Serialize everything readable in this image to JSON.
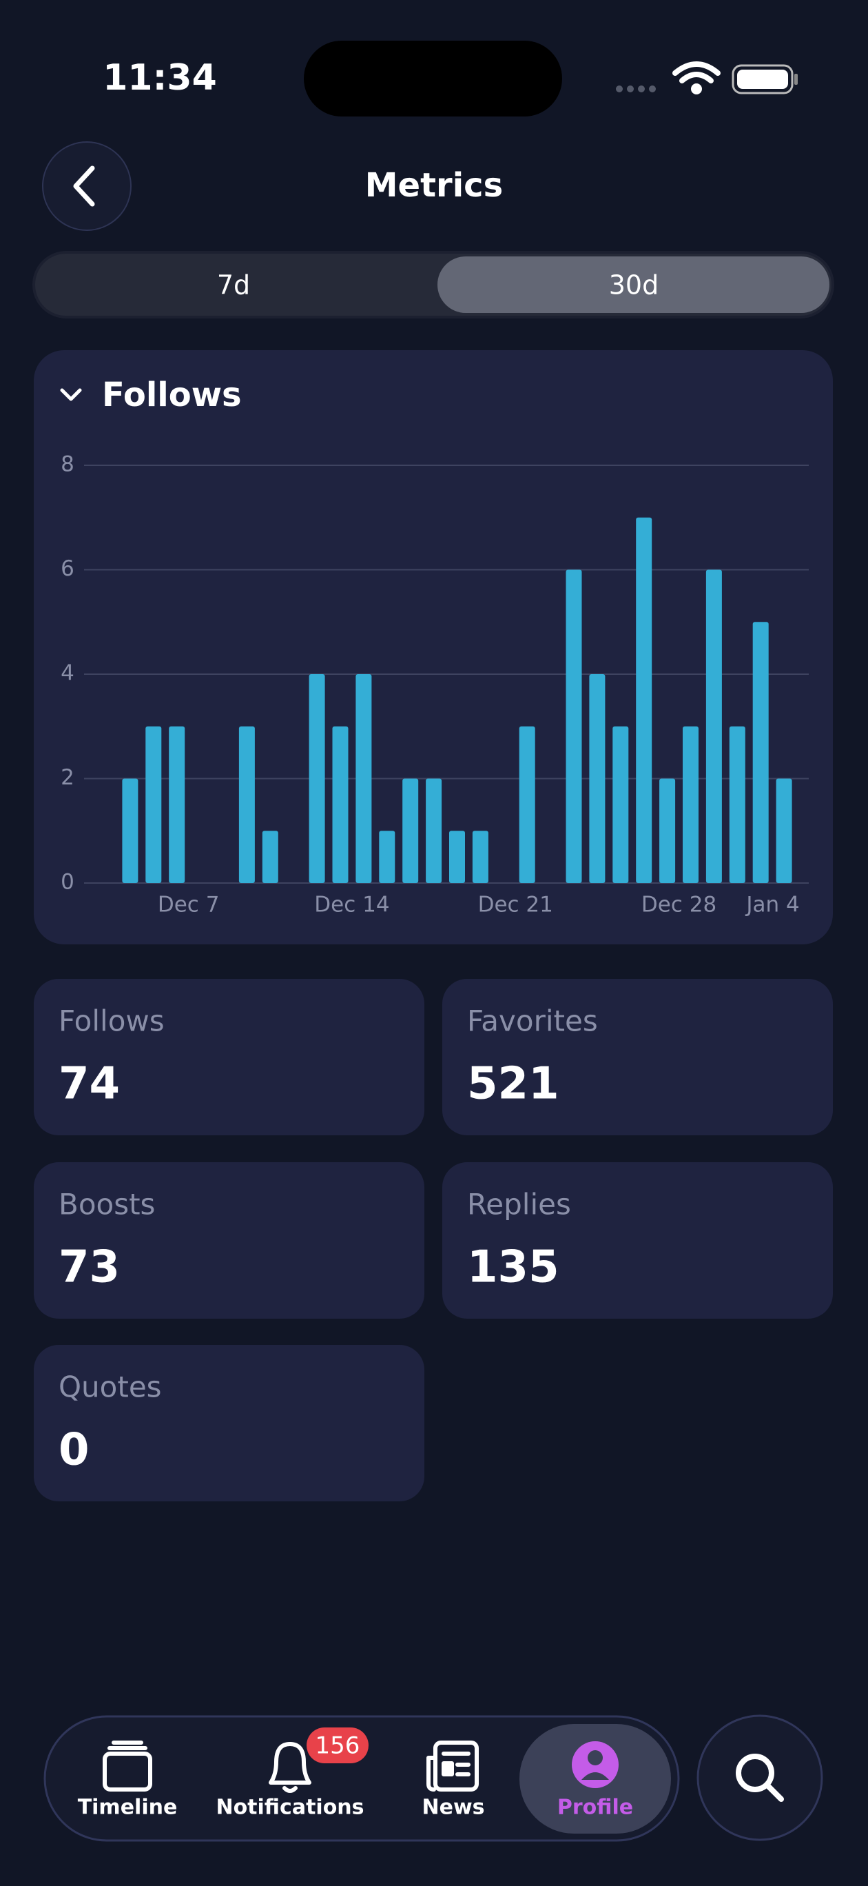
{
  "status_bar": {
    "time": "11:34"
  },
  "header": {
    "title": "Metrics"
  },
  "segments": {
    "items": [
      "7d",
      "30d"
    ],
    "selected": 1
  },
  "chart_data": {
    "type": "bar",
    "title": "Follows",
    "categories": [
      null,
      null,
      null,
      "Dec 7",
      null,
      null,
      null,
      null,
      null,
      null,
      "Dec 14",
      null,
      null,
      null,
      null,
      null,
      null,
      "Dec 21",
      null,
      null,
      null,
      null,
      null,
      null,
      "Dec 28",
      null,
      null,
      null,
      null,
      null,
      null,
      "Jan 4"
    ],
    "values": [
      0,
      2,
      3,
      3,
      0,
      0,
      3,
      1,
      0,
      4,
      3,
      4,
      1,
      2,
      2,
      1,
      1,
      0,
      3,
      0,
      6,
      4,
      3,
      7,
      2,
      3,
      6,
      3,
      5,
      2,
      0,
      0
    ],
    "color": "#34aed6",
    "ylim": [
      0,
      8
    ],
    "yticks": [
      0,
      2,
      4,
      6,
      8
    ],
    "grid": true
  },
  "stats": [
    {
      "label": "Follows",
      "value": 74
    },
    {
      "label": "Favorites",
      "value": 521
    },
    {
      "label": "Boosts",
      "value": 73
    },
    {
      "label": "Replies",
      "value": 135
    },
    {
      "label": "Quotes",
      "value": 0
    }
  ],
  "tab_bar": {
    "items": [
      "Timeline",
      "Notifications",
      "News",
      "Profile"
    ],
    "badge": "156",
    "active": 3
  }
}
